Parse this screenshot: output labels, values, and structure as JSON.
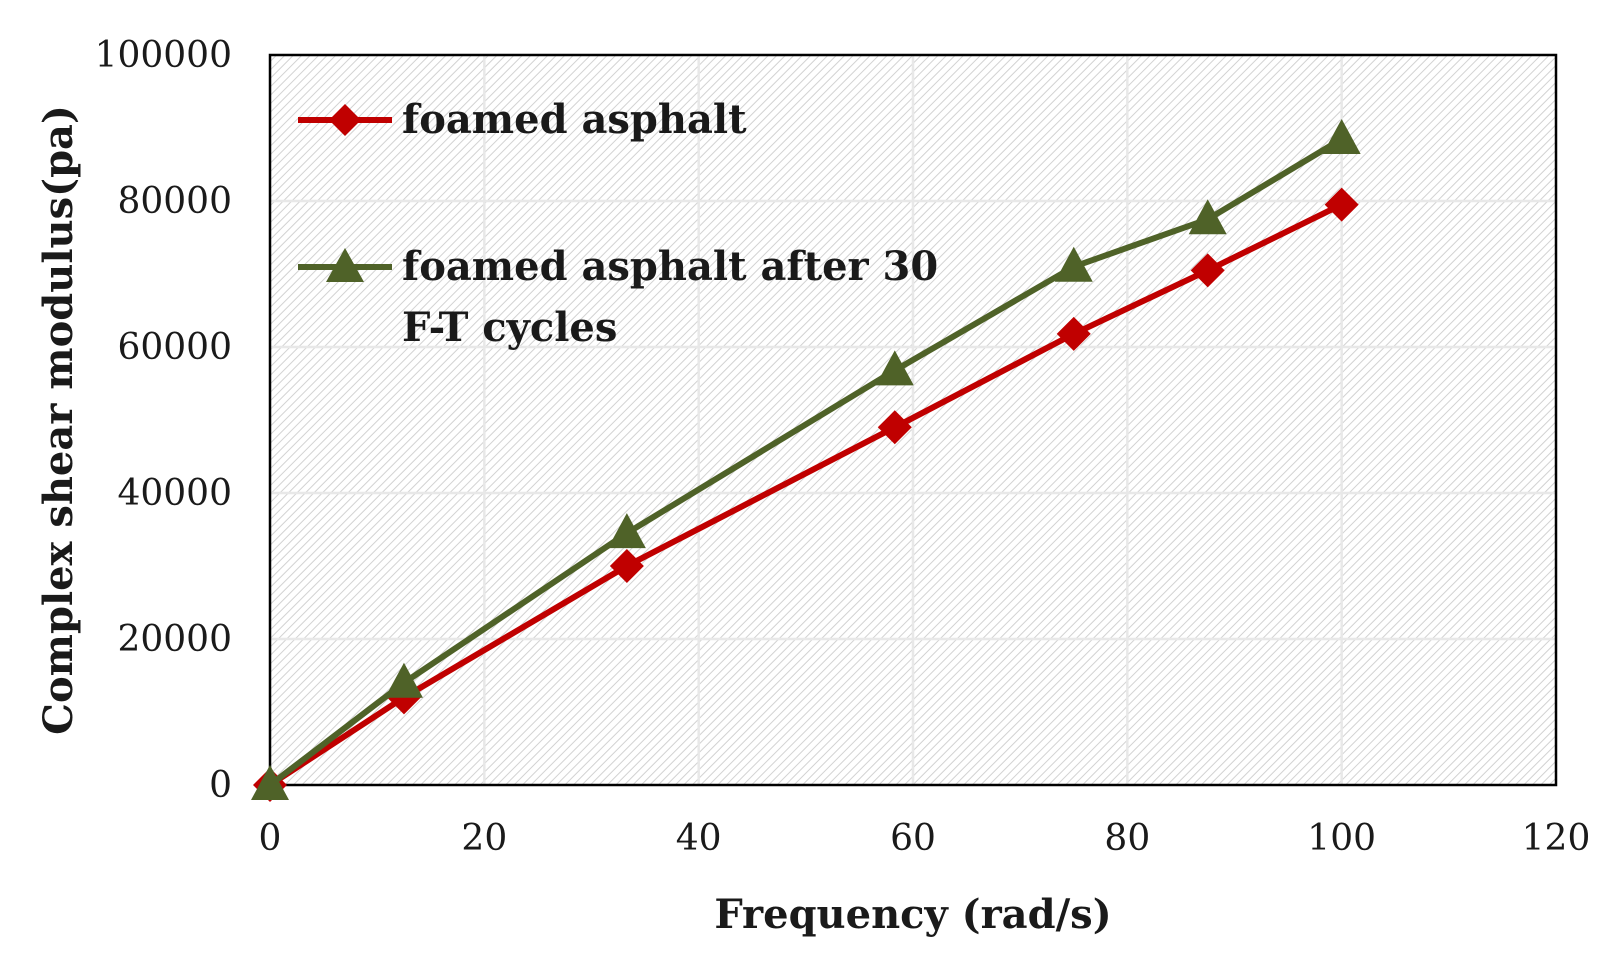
{
  "chart_data": {
    "type": "line",
    "title": "",
    "xlabel": "Frequency (rad/s)",
    "ylabel": "Complex shear modulus(pa)",
    "xlim": [
      0,
      120
    ],
    "ylim": [
      0,
      100000
    ],
    "xticks": [
      0,
      20,
      40,
      60,
      80,
      100,
      120
    ],
    "yticks": [
      0,
      20000,
      40000,
      60000,
      80000,
      100000
    ],
    "grid": true,
    "legend_position": "top-left",
    "series": [
      {
        "name": "foamed asphalt",
        "color": "#c00000",
        "marker": "diamond",
        "x": [
          0,
          12.5,
          33.3,
          58.3,
          75,
          87.5,
          100
        ],
        "y": [
          0,
          12000,
          30000,
          49000,
          61800,
          70500,
          79500
        ]
      },
      {
        "name": "foamed asphalt after 30 F-T cycles",
        "legend_lines": [
          "foamed asphalt after 30",
          "F-T cycles"
        ],
        "color": "#4f6228",
        "marker": "triangle",
        "x": [
          0,
          12.5,
          33.3,
          58.3,
          75,
          87.5,
          100
        ],
        "y": [
          0,
          14000,
          34500,
          56800,
          71000,
          77500,
          88500
        ]
      }
    ]
  }
}
